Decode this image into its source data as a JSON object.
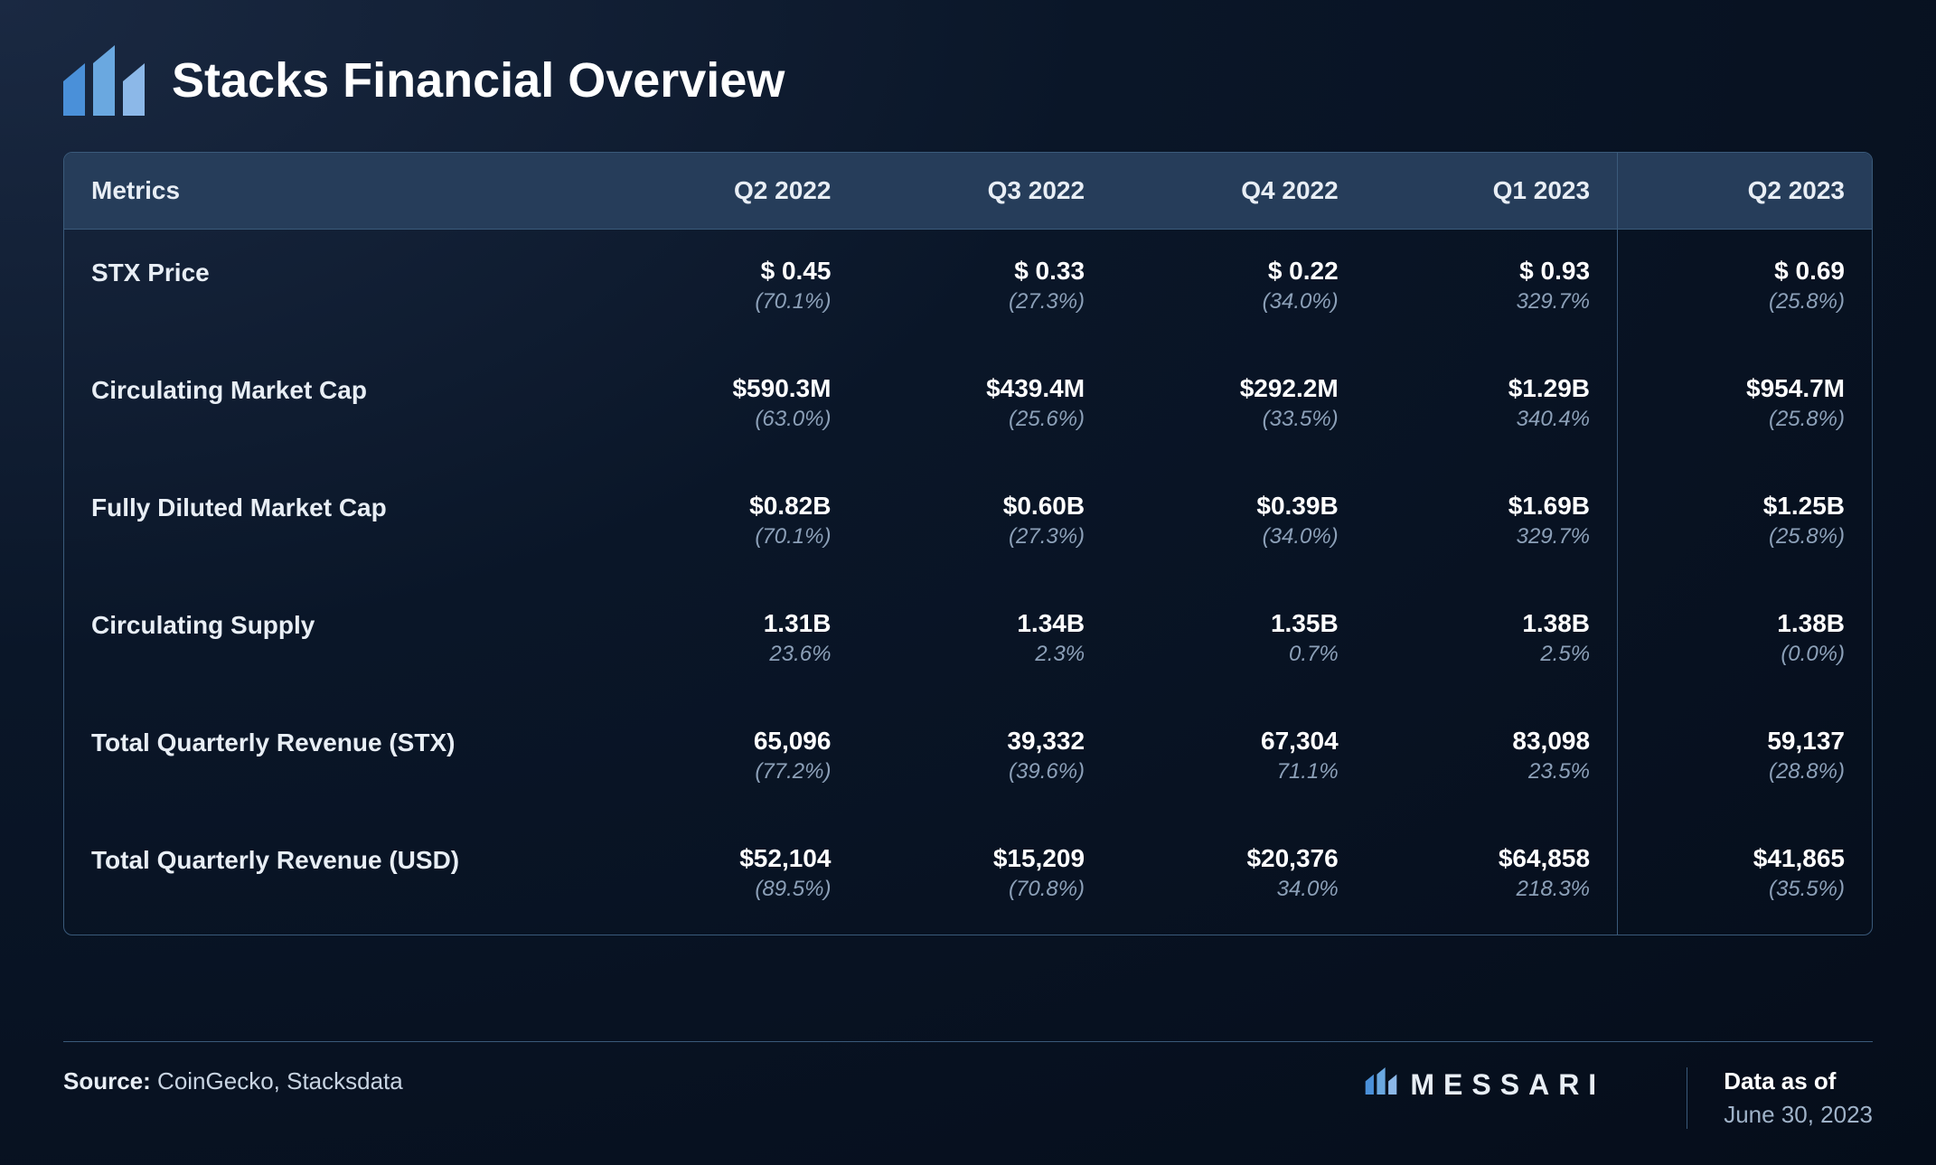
{
  "title": "Stacks Financial Overview",
  "colors": {
    "background_gradient_from": "#1a2942",
    "background_gradient_to": "#050d1a",
    "header_row_bg": "#263d5a",
    "border": "#3a5a7a",
    "text_primary": "#ffffff",
    "text_secondary": "#8ca0b8",
    "logo_blue": "#4a90d9",
    "logo_light": "#8cb8e8"
  },
  "typography": {
    "title_fontsize_pt": 40,
    "header_fontsize_pt": 21,
    "value_fontsize_pt": 21,
    "pct_fontsize_pt": 18,
    "footer_fontsize_pt": 19
  },
  "table": {
    "type": "table",
    "metrics_header": "Metrics",
    "columns": [
      "Q2 2022",
      "Q3 2022",
      "Q4 2022",
      "Q1 2023",
      "Q2 2023"
    ],
    "highlight_last_column": true,
    "rows": [
      {
        "label": "STX Price",
        "cells": [
          {
            "value": "$ 0.45",
            "pct": "(70.1%)"
          },
          {
            "value": "$ 0.33",
            "pct": "(27.3%)"
          },
          {
            "value": "$ 0.22",
            "pct": "(34.0%)"
          },
          {
            "value": "$ 0.93",
            "pct": "329.7%"
          },
          {
            "value": "$ 0.69",
            "pct": "(25.8%)"
          }
        ]
      },
      {
        "label": "Circulating Market Cap",
        "cells": [
          {
            "value": "$590.3M",
            "pct": "(63.0%)"
          },
          {
            "value": "$439.4M",
            "pct": "(25.6%)"
          },
          {
            "value": "$292.2M",
            "pct": "(33.5%)"
          },
          {
            "value": "$1.29B",
            "pct": "340.4%"
          },
          {
            "value": "$954.7M",
            "pct": "(25.8%)"
          }
        ]
      },
      {
        "label": "Fully Diluted Market Cap",
        "cells": [
          {
            "value": "$0.82B",
            "pct": "(70.1%)"
          },
          {
            "value": "$0.60B",
            "pct": "(27.3%)"
          },
          {
            "value": "$0.39B",
            "pct": "(34.0%)"
          },
          {
            "value": "$1.69B",
            "pct": "329.7%"
          },
          {
            "value": "$1.25B",
            "pct": "(25.8%)"
          }
        ]
      },
      {
        "label": "Circulating Supply",
        "cells": [
          {
            "value": "1.31B",
            "pct": "23.6%"
          },
          {
            "value": "1.34B",
            "pct": "2.3%"
          },
          {
            "value": "1.35B",
            "pct": "0.7%"
          },
          {
            "value": "1.38B",
            "pct": "2.5%"
          },
          {
            "value": "1.38B",
            "pct": "(0.0%)"
          }
        ]
      },
      {
        "label": "Total Quarterly Revenue (STX)",
        "cells": [
          {
            "value": "65,096",
            "pct": "(77.2%)"
          },
          {
            "value": "39,332",
            "pct": "(39.6%)"
          },
          {
            "value": "67,304",
            "pct": "71.1%"
          },
          {
            "value": "83,098",
            "pct": "23.5%"
          },
          {
            "value": "59,137",
            "pct": "(28.8%)"
          }
        ]
      },
      {
        "label": "Total Quarterly Revenue (USD)",
        "cells": [
          {
            "value": "$52,104",
            "pct": "(89.5%)"
          },
          {
            "value": "$15,209",
            "pct": "(70.8%)"
          },
          {
            "value": "$20,376",
            "pct": "34.0%"
          },
          {
            "value": "$64,858",
            "pct": "218.3%"
          },
          {
            "value": "$41,865",
            "pct": "(35.5%)"
          }
        ]
      }
    ]
  },
  "footer": {
    "source_label": "Source:",
    "source_text": "CoinGecko, Stacksdata",
    "brand": "MESSARI",
    "asof_label": "Data as of",
    "asof_date": "June 30, 2023"
  }
}
